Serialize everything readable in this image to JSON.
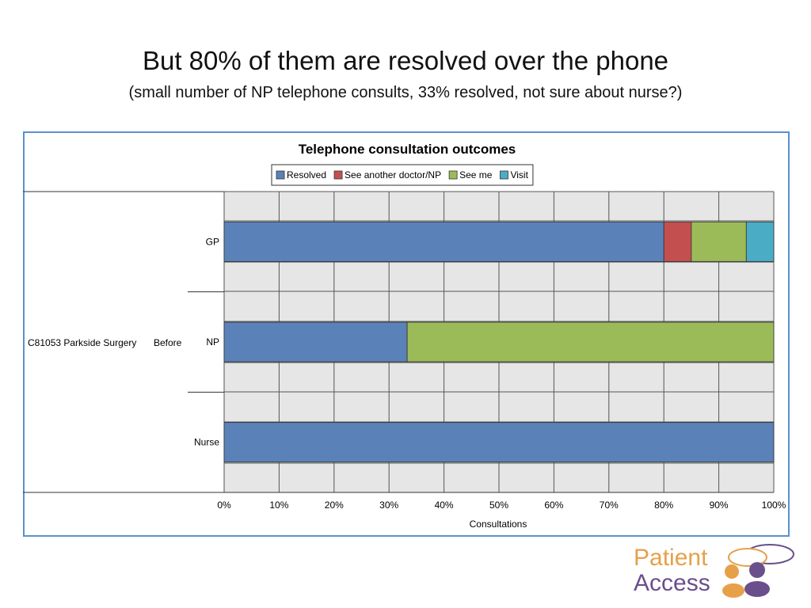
{
  "slide": {
    "title": "But 80% of them are resolved over the phone",
    "subtitle": "(small number of NP telephone consults, 33% resolved, not sure about nurse?)"
  },
  "chart_data": {
    "type": "bar",
    "orientation": "horizontal",
    "stacked": "percent",
    "title": "Telephone consultation outcomes",
    "xlabel": "Consultations",
    "ylabel": "",
    "group_label": "C81053 Parkside Surgery",
    "subgroup_label": "Before",
    "categories": [
      "GP",
      "NP",
      "Nurse"
    ],
    "series": [
      {
        "name": "Resolved",
        "color": "#5b82b8",
        "values": [
          80,
          33.3,
          100
        ]
      },
      {
        "name": "See another doctor/NP",
        "color": "#c44f4f",
        "values": [
          5,
          0,
          0
        ]
      },
      {
        "name": "See me",
        "color": "#9bbb59",
        "values": [
          10,
          66.7,
          0
        ]
      },
      {
        "name": "Visit",
        "color": "#4bacc6",
        "values": [
          5,
          0,
          0
        ]
      }
    ],
    "xlim": [
      0,
      100
    ],
    "x_ticks": [
      "0%",
      "10%",
      "20%",
      "30%",
      "40%",
      "50%",
      "60%",
      "70%",
      "80%",
      "90%",
      "100%"
    ],
    "legend_position": "top",
    "grid": true,
    "plot_background": "#e6e6e6"
  },
  "logo": {
    "line1": "Patient",
    "line2": "Access"
  }
}
